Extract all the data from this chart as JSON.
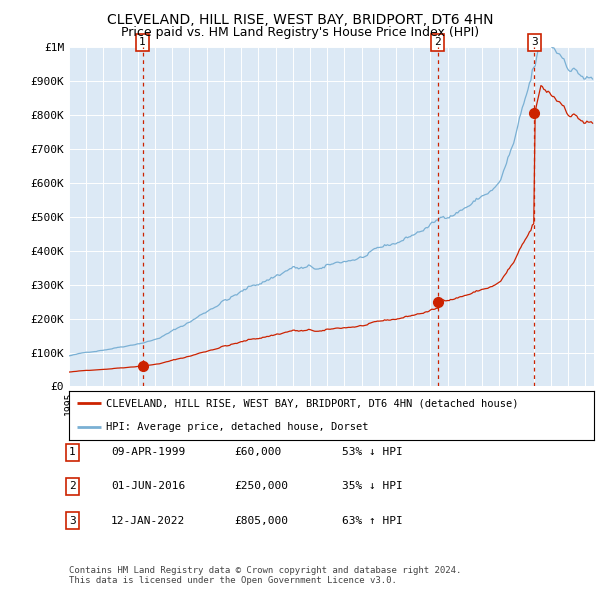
{
  "title": "CLEVELAND, HILL RISE, WEST BAY, BRIDPORT, DT6 4HN",
  "subtitle": "Price paid vs. HM Land Registry's House Price Index (HPI)",
  "title_fontsize": 10,
  "subtitle_fontsize": 9,
  "hpi_color": "#7ab0d4",
  "price_color": "#cc2200",
  "plot_bg": "#dce9f5",
  "grid_color": "#ffffff",
  "ylim": [
    0,
    1000000
  ],
  "xlim_start": 1995.0,
  "xlim_end": 2025.5,
  "sale_dates": [
    1999.27,
    2016.42,
    2022.04
  ],
  "sale_prices": [
    60000,
    250000,
    805000
  ],
  "sale_labels": [
    "1",
    "2",
    "3"
  ],
  "legend_price_label": "CLEVELAND, HILL RISE, WEST BAY, BRIDPORT, DT6 4HN (detached house)",
  "legend_hpi_label": "HPI: Average price, detached house, Dorset",
  "table_rows": [
    [
      "1",
      "09-APR-1999",
      "£60,000",
      "53% ↓ HPI"
    ],
    [
      "2",
      "01-JUN-2016",
      "£250,000",
      "35% ↓ HPI"
    ],
    [
      "3",
      "12-JAN-2022",
      "£805,000",
      "63% ↑ HPI"
    ]
  ],
  "footnote": "Contains HM Land Registry data © Crown copyright and database right 2024.\nThis data is licensed under the Open Government Licence v3.0.",
  "ytick_labels": [
    "£0",
    "£100K",
    "£200K",
    "£300K",
    "£400K",
    "£500K",
    "£600K",
    "£700K",
    "£800K",
    "£900K",
    "£1M"
  ],
  "ytick_values": [
    0,
    100000,
    200000,
    300000,
    400000,
    500000,
    600000,
    700000,
    800000,
    900000,
    1000000
  ]
}
